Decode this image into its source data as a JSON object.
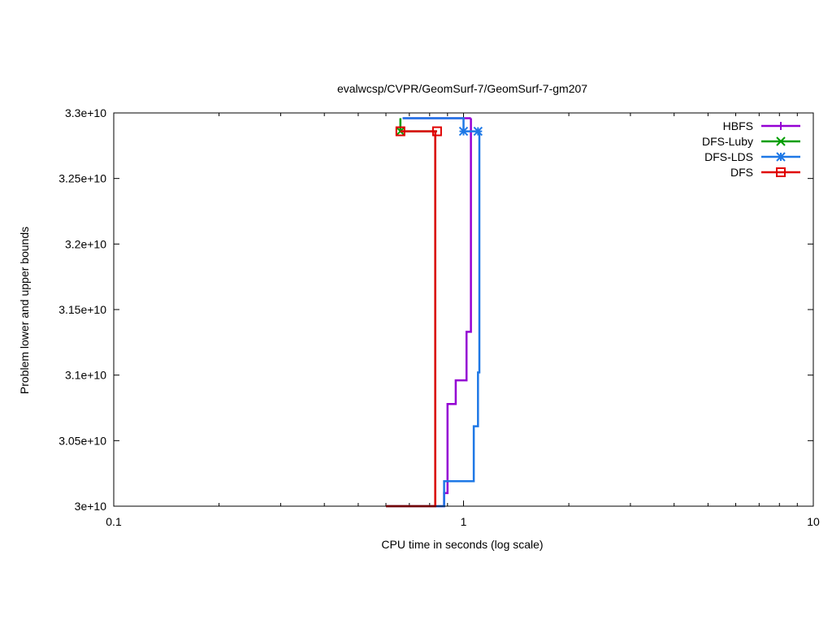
{
  "chart_data": {
    "type": "line",
    "title": "evalwcsp/CVPR/GeomSurf-7/GeomSurf-7-gm207",
    "xlabel": "CPU time in seconds (log scale)",
    "ylabel": "Problem lower and upper bounds",
    "x_scale": "log",
    "xlim": [
      0.1,
      10
    ],
    "ylim": [
      30000000000,
      33000000000
    ],
    "x_ticks": [
      {
        "value": 0.1,
        "label": "0.1"
      },
      {
        "value": 1,
        "label": "1"
      },
      {
        "value": 10,
        "label": "10"
      }
    ],
    "y_ticks": [
      {
        "value": 30000000000,
        "label": "3e+10"
      },
      {
        "value": 30500000000,
        "label": "3.05e+10"
      },
      {
        "value": 31000000000,
        "label": "3.1e+10"
      },
      {
        "value": 31500000000,
        "label": "3.15e+10"
      },
      {
        "value": 32000000000,
        "label": "3.2e+10"
      },
      {
        "value": 32500000000,
        "label": "3.25e+10"
      },
      {
        "value": 33000000000,
        "label": "3.3e+10"
      }
    ],
    "grid": false,
    "legend_position": "top-right",
    "series": [
      {
        "name": "HBFS",
        "color": "#9400d3",
        "marker": "plus",
        "lower": [
          [
            0.6,
            30000000000
          ],
          [
            0.88,
            30000000000
          ],
          [
            0.88,
            30100000000
          ],
          [
            0.9,
            30100000000
          ],
          [
            0.9,
            30780000000
          ],
          [
            0.95,
            30780000000
          ],
          [
            0.95,
            30960000000
          ],
          [
            1.02,
            30960000000
          ],
          [
            1.02,
            31330000000
          ],
          [
            1.05,
            31330000000
          ],
          [
            1.05,
            32960000000
          ]
        ],
        "upper": [
          [
            0.67,
            32960000000
          ],
          [
            1.05,
            32960000000
          ]
        ],
        "marker_points": []
      },
      {
        "name": "DFS-Luby",
        "color": "#009e00",
        "marker": "cross",
        "lower": [
          [
            0.6,
            30000000000
          ],
          [
            0.83,
            30000000000
          ],
          [
            0.83,
            32860000000
          ]
        ],
        "upper": [
          [
            0.66,
            32960000000
          ],
          [
            0.66,
            32860000000
          ],
          [
            0.84,
            32860000000
          ]
        ],
        "marker_points": [
          [
            0.66,
            32860000000
          ]
        ]
      },
      {
        "name": "DFS-LDS",
        "color": "#1e78e6",
        "marker": "star",
        "lower": [
          [
            0.6,
            30000000000
          ],
          [
            0.88,
            30000000000
          ],
          [
            0.88,
            30190000000
          ],
          [
            1.07,
            30190000000
          ],
          [
            1.07,
            30610000000
          ],
          [
            1.1,
            30610000000
          ],
          [
            1.1,
            31020000000
          ],
          [
            1.11,
            31020000000
          ],
          [
            1.11,
            32860000000
          ]
        ],
        "upper": [
          [
            0.67,
            32960000000
          ],
          [
            1.0,
            32960000000
          ],
          [
            1.0,
            32860000000
          ],
          [
            1.1,
            32860000000
          ]
        ],
        "marker_points": [
          [
            1.0,
            32860000000
          ],
          [
            1.1,
            32860000000
          ]
        ]
      },
      {
        "name": "DFS",
        "color": "#e00000",
        "marker": "square",
        "lower": [
          [
            0.6,
            30000000000
          ],
          [
            0.83,
            30000000000
          ],
          [
            0.83,
            32860000000
          ]
        ],
        "upper": [
          [
            0.66,
            32860000000
          ],
          [
            0.84,
            32860000000
          ]
        ],
        "marker_points": [
          [
            0.66,
            32860000000
          ],
          [
            0.84,
            32860000000
          ]
        ]
      }
    ]
  }
}
